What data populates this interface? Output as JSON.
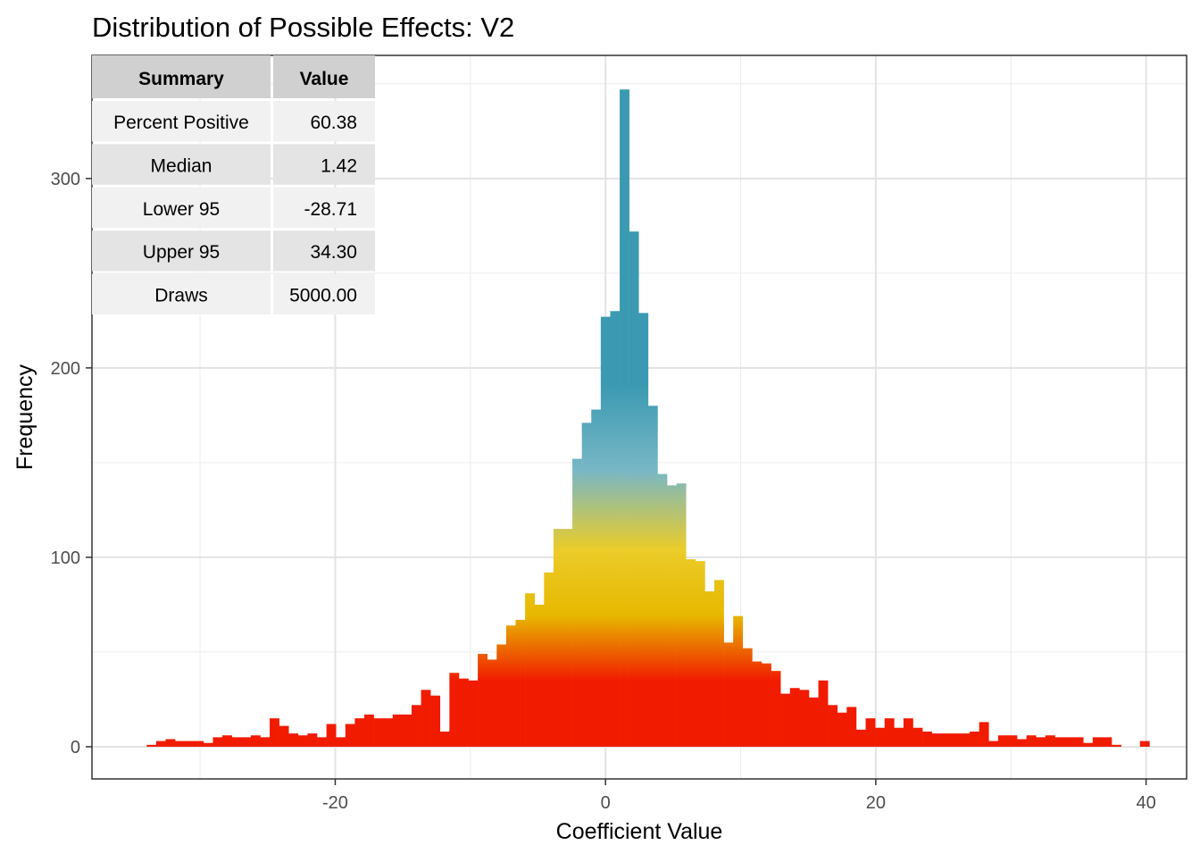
{
  "chart_data": {
    "type": "bar",
    "title": "Distribution of Possible Effects: V2",
    "xlabel": "Coefficient Value",
    "ylabel": "Frequency",
    "xlim": [
      -38,
      43
    ],
    "ylim": [
      -17,
      365
    ],
    "x_ticks": [
      -20,
      0,
      20,
      40
    ],
    "x_tick_labels": [
      "-20",
      "0",
      "20",
      "40"
    ],
    "y_ticks": [
      0,
      100,
      200,
      300
    ],
    "y_tick_labels": [
      "0",
      "100",
      "200",
      "300"
    ],
    "grid": true,
    "bin_width": 0.7,
    "gradient_colors": [
      "#F11B00",
      "#E7B800",
      "#EBCC2A",
      "#78B7C5",
      "#3B9AB2"
    ],
    "bins": [
      {
        "x": -33.6,
        "y": 1
      },
      {
        "x": -32.9,
        "y": 3
      },
      {
        "x": -32.2,
        "y": 4
      },
      {
        "x": -31.5,
        "y": 3
      },
      {
        "x": -30.8,
        "y": 3
      },
      {
        "x": -30.1,
        "y": 3
      },
      {
        "x": -29.4,
        "y": 2
      },
      {
        "x": -28.7,
        "y": 5
      },
      {
        "x": -28.0,
        "y": 6
      },
      {
        "x": -27.3,
        "y": 5
      },
      {
        "x": -26.6,
        "y": 5
      },
      {
        "x": -25.9,
        "y": 6
      },
      {
        "x": -25.2,
        "y": 5
      },
      {
        "x": -24.5,
        "y": 15
      },
      {
        "x": -23.8,
        "y": 11
      },
      {
        "x": -23.1,
        "y": 7
      },
      {
        "x": -22.4,
        "y": 6
      },
      {
        "x": -21.7,
        "y": 7
      },
      {
        "x": -21.0,
        "y": 5
      },
      {
        "x": -20.3,
        "y": 12
      },
      {
        "x": -19.6,
        "y": 5
      },
      {
        "x": -18.9,
        "y": 12
      },
      {
        "x": -18.2,
        "y": 15
      },
      {
        "x": -17.5,
        "y": 17
      },
      {
        "x": -16.8,
        "y": 15
      },
      {
        "x": -16.1,
        "y": 15
      },
      {
        "x": -15.4,
        "y": 17
      },
      {
        "x": -14.7,
        "y": 17
      },
      {
        "x": -14.0,
        "y": 22
      },
      {
        "x": -13.3,
        "y": 30
      },
      {
        "x": -12.6,
        "y": 27
      },
      {
        "x": -11.9,
        "y": 8
      },
      {
        "x": -11.2,
        "y": 39
      },
      {
        "x": -10.5,
        "y": 36
      },
      {
        "x": -9.8,
        "y": 35
      },
      {
        "x": -9.1,
        "y": 49
      },
      {
        "x": -8.4,
        "y": 46
      },
      {
        "x": -7.7,
        "y": 54
      },
      {
        "x": -7.0,
        "y": 64
      },
      {
        "x": -6.3,
        "y": 67
      },
      {
        "x": -5.6,
        "y": 81
      },
      {
        "x": -4.9,
        "y": 75
      },
      {
        "x": -4.2,
        "y": 92
      },
      {
        "x": -3.5,
        "y": 115
      },
      {
        "x": -2.8,
        "y": 115
      },
      {
        "x": -2.1,
        "y": 152
      },
      {
        "x": -1.4,
        "y": 171
      },
      {
        "x": -0.7,
        "y": 178
      },
      {
        "x": 0.0,
        "y": 227
      },
      {
        "x": 0.7,
        "y": 230
      },
      {
        "x": 1.4,
        "y": 347
      },
      {
        "x": 2.1,
        "y": 272
      },
      {
        "x": 2.8,
        "y": 229
      },
      {
        "x": 3.5,
        "y": 180
      },
      {
        "x": 4.2,
        "y": 144
      },
      {
        "x": 4.9,
        "y": 138
      },
      {
        "x": 5.6,
        "y": 139
      },
      {
        "x": 6.3,
        "y": 99
      },
      {
        "x": 7.0,
        "y": 98
      },
      {
        "x": 7.7,
        "y": 82
      },
      {
        "x": 8.4,
        "y": 88
      },
      {
        "x": 9.1,
        "y": 55
      },
      {
        "x": 9.8,
        "y": 69
      },
      {
        "x": 10.5,
        "y": 52
      },
      {
        "x": 11.2,
        "y": 45
      },
      {
        "x": 11.9,
        "y": 44
      },
      {
        "x": 12.6,
        "y": 40
      },
      {
        "x": 13.3,
        "y": 28
      },
      {
        "x": 14.0,
        "y": 31
      },
      {
        "x": 14.7,
        "y": 30
      },
      {
        "x": 15.4,
        "y": 26
      },
      {
        "x": 16.1,
        "y": 35
      },
      {
        "x": 16.8,
        "y": 22
      },
      {
        "x": 17.5,
        "y": 18
      },
      {
        "x": 18.2,
        "y": 21
      },
      {
        "x": 18.9,
        "y": 9
      },
      {
        "x": 19.6,
        "y": 15
      },
      {
        "x": 20.3,
        "y": 10
      },
      {
        "x": 21.0,
        "y": 15
      },
      {
        "x": 21.7,
        "y": 10
      },
      {
        "x": 22.4,
        "y": 15
      },
      {
        "x": 23.1,
        "y": 10
      },
      {
        "x": 23.8,
        "y": 8
      },
      {
        "x": 24.5,
        "y": 7
      },
      {
        "x": 25.2,
        "y": 7
      },
      {
        "x": 25.9,
        "y": 7
      },
      {
        "x": 26.6,
        "y": 7
      },
      {
        "x": 27.3,
        "y": 8
      },
      {
        "x": 28.0,
        "y": 13
      },
      {
        "x": 28.7,
        "y": 3
      },
      {
        "x": 29.4,
        "y": 6
      },
      {
        "x": 30.1,
        "y": 6
      },
      {
        "x": 30.8,
        "y": 4
      },
      {
        "x": 31.5,
        "y": 6
      },
      {
        "x": 32.2,
        "y": 5
      },
      {
        "x": 32.9,
        "y": 6
      },
      {
        "x": 33.6,
        "y": 5
      },
      {
        "x": 34.3,
        "y": 5
      },
      {
        "x": 35.0,
        "y": 5
      },
      {
        "x": 35.7,
        "y": 2
      },
      {
        "x": 36.4,
        "y": 5
      },
      {
        "x": 37.1,
        "y": 5
      },
      {
        "x": 37.8,
        "y": 1
      },
      {
        "x": 38.5,
        "y": 0
      },
      {
        "x": 39.2,
        "y": 0
      },
      {
        "x": 39.9,
        "y": 3
      }
    ]
  },
  "summary_table": {
    "headers": [
      "Summary",
      "Value"
    ],
    "rows": [
      {
        "label": "Percent Positive",
        "value": "60.38"
      },
      {
        "label": "Median",
        "value": "1.42"
      },
      {
        "label": "Lower 95",
        "value": "-28.71"
      },
      {
        "label": "Upper 95",
        "value": "34.30"
      },
      {
        "label": "Draws",
        "value": "5000.00"
      }
    ]
  }
}
